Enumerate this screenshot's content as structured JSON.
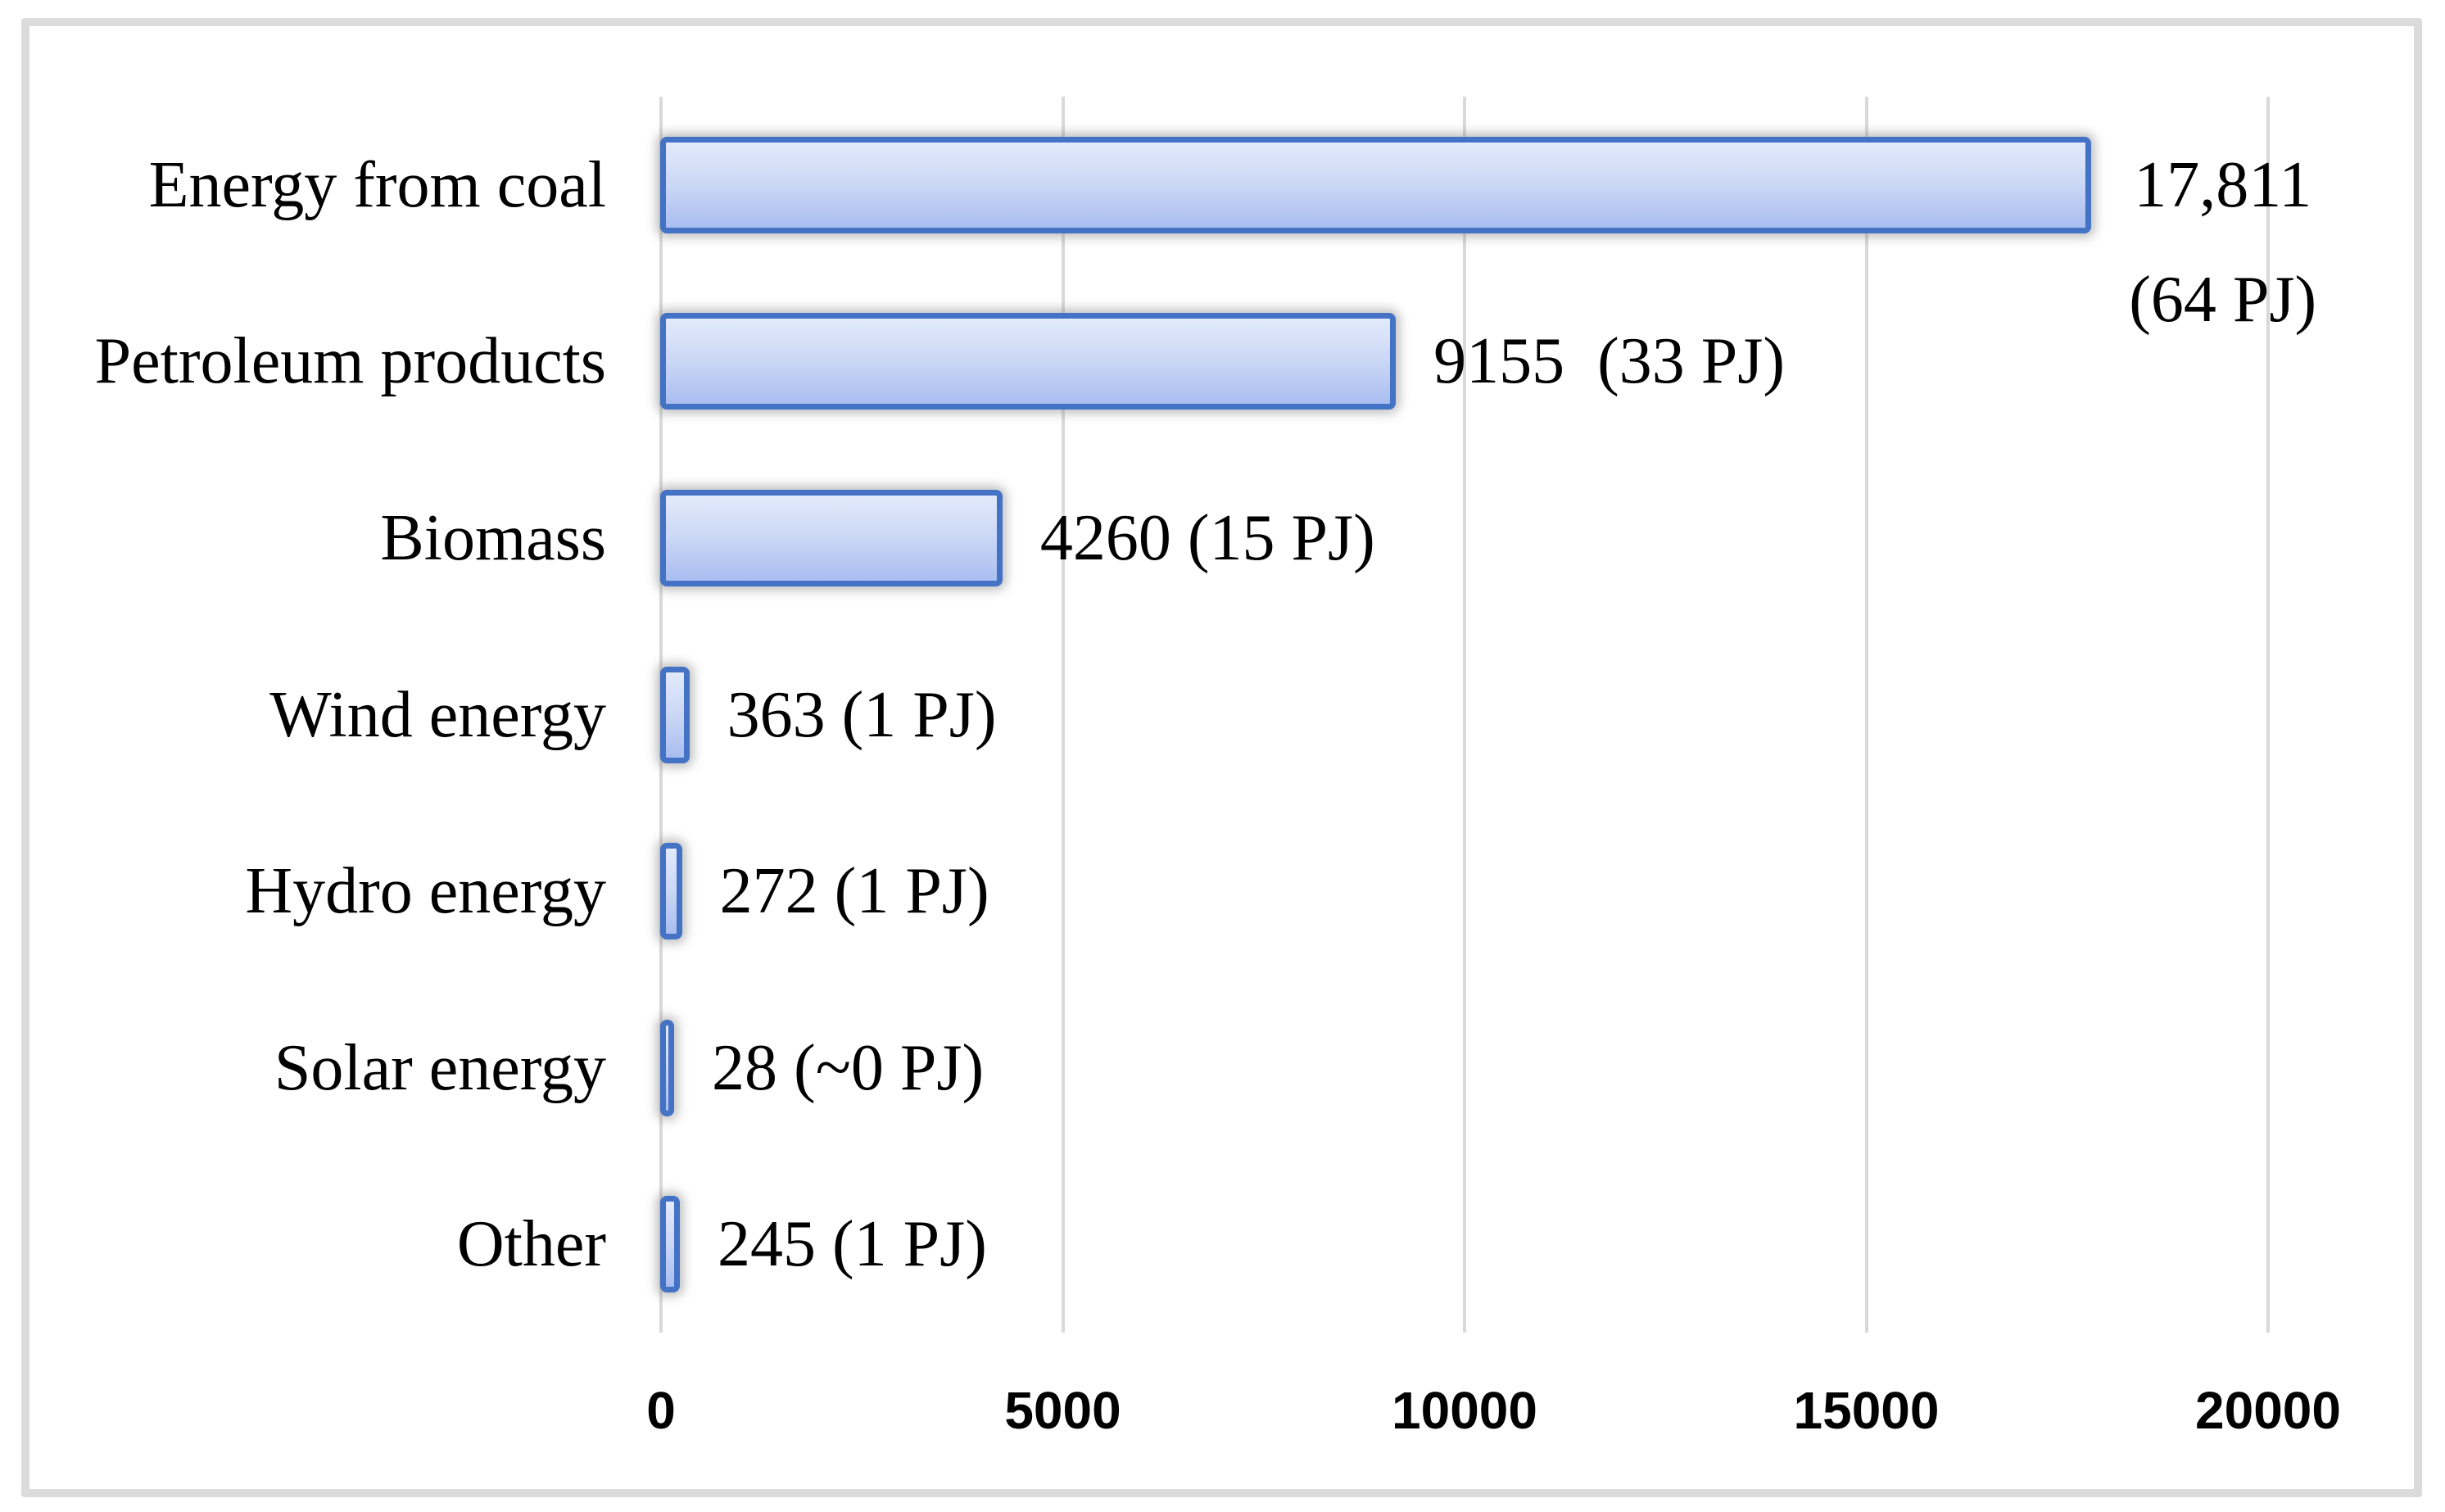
{
  "figure": {
    "background": "#ffffff",
    "frame_border_color": "#dbdbdb"
  },
  "chart_data": {
    "type": "bar",
    "orientation": "horizontal",
    "title": "",
    "xlabel": "",
    "ylabel": "",
    "legend": "none",
    "categories": [
      "Energy from coal",
      "Petroleum products",
      "Biomass",
      "Wind energy",
      "Hydro energy",
      "Solar energy",
      "Other"
    ],
    "values": [
      17811,
      9155,
      4260,
      363,
      272,
      28,
      245
    ],
    "energy_pj": [
      64,
      33,
      15,
      1,
      1,
      0,
      1
    ],
    "value_labels": [
      [
        "17,811",
        "(64 PJ)"
      ],
      [
        "9155  (33 PJ)"
      ],
      [
        "4260 (15 PJ)"
      ],
      [
        "363 (1 PJ)"
      ],
      [
        "272 (1 PJ)"
      ],
      [
        "28 (~0 PJ)"
      ],
      [
        "245 (1 PJ)"
      ]
    ],
    "x_axis": {
      "range": [
        0,
        20000
      ],
      "tick_interval": 5000,
      "tick_values": [
        0,
        5000,
        10000,
        15000,
        20000
      ],
      "tick_labels": [
        "0",
        "5000",
        "10000",
        "15000",
        "20000"
      ],
      "gridlines": true
    },
    "colors": {
      "bar_border": "#4472c4",
      "bar_fill_top": "#e2eafb",
      "bar_fill_bottom": "#a9bdf0",
      "gridline": "#d9d9d9",
      "text": "#000000"
    }
  }
}
